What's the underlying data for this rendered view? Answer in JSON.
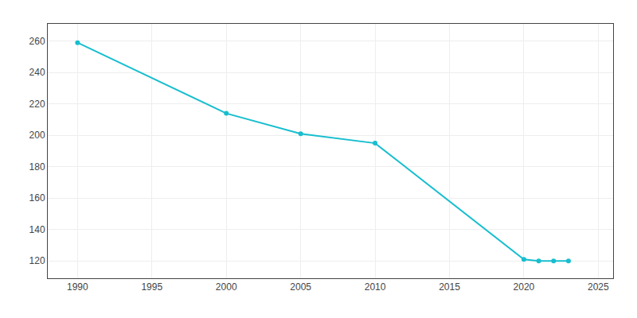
{
  "chart_data": {
    "type": "line",
    "x": [
      1990,
      2000,
      2005,
      2010,
      2020,
      2021,
      2022,
      2023
    ],
    "values": [
      259,
      214,
      201,
      195,
      121,
      120,
      120,
      120
    ],
    "color": "#17BECF",
    "marker": "circle",
    "line_style": "solid",
    "xlim": [
      1988,
      2026
    ],
    "ylim": [
      109,
      271
    ],
    "xticks": [
      1990,
      1995,
      2000,
      2005,
      2010,
      2015,
      2020,
      2025
    ],
    "yticks": [
      120,
      140,
      160,
      180,
      200,
      220,
      240,
      260
    ],
    "grid": true
  }
}
